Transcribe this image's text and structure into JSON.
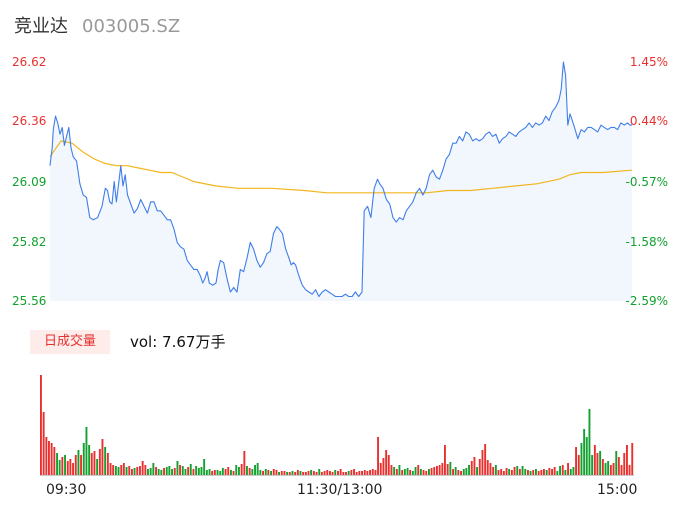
{
  "header": {
    "name": "竞业达",
    "code": "003005.SZ"
  },
  "colors": {
    "up": "#e8312f",
    "down": "#12a12f",
    "neutral": "#888888",
    "price": "#3f7ee8",
    "avg": "#f3b51d",
    "area": "#f2f6fd"
  },
  "volume": {
    "tab_label": "日成交量",
    "readout": "vol: 7.67万手"
  },
  "chart_data": {
    "type": "line",
    "x_labels": [
      "09:30",
      "11:30/13:00",
      "15:00"
    ],
    "y_left_ticks": [
      "26.62",
      "26.36",
      "26.09",
      "25.82",
      "25.56"
    ],
    "y_right_ticks": [
      "1.45%",
      "0.44%",
      "-0.57%",
      "-1.58%",
      "-2.59%"
    ],
    "ylim": [
      25.56,
      26.62
    ],
    "prev_close": 26.24,
    "price_anchors": [
      [
        0,
        26.16
      ],
      [
        2,
        26.24
      ],
      [
        3,
        26.32
      ],
      [
        5,
        26.38
      ],
      [
        7,
        26.35
      ],
      [
        9,
        26.3
      ],
      [
        11,
        26.33
      ],
      [
        13,
        26.25
      ],
      [
        15,
        26.29
      ],
      [
        17,
        26.33
      ],
      [
        19,
        26.24
      ],
      [
        21,
        26.2
      ],
      [
        24,
        26.18
      ],
      [
        27,
        26.08
      ],
      [
        30,
        26.03
      ],
      [
        33,
        26.02
      ],
      [
        36,
        25.93
      ],
      [
        39,
        25.92
      ],
      [
        43,
        25.93
      ],
      [
        47,
        25.98
      ],
      [
        50,
        26.06
      ],
      [
        52,
        26.05
      ],
      [
        54,
        26.0
      ],
      [
        56,
        25.99
      ],
      [
        58,
        26.09
      ],
      [
        60,
        26.0
      ],
      [
        62,
        26.08
      ],
      [
        64,
        26.16
      ],
      [
        66,
        26.07
      ],
      [
        68,
        26.12
      ],
      [
        70,
        26.03
      ],
      [
        73,
        25.99
      ],
      [
        76,
        25.95
      ],
      [
        79,
        25.97
      ],
      [
        82,
        26.01
      ],
      [
        85,
        25.98
      ],
      [
        88,
        25.95
      ],
      [
        91,
        26.0
      ],
      [
        94,
        26.0
      ],
      [
        97,
        25.96
      ],
      [
        100,
        25.96
      ],
      [
        103,
        25.94
      ],
      [
        106,
        25.92
      ],
      [
        109,
        25.92
      ],
      [
        112,
        25.88
      ],
      [
        115,
        25.82
      ],
      [
        118,
        25.8
      ],
      [
        121,
        25.79
      ],
      [
        124,
        25.74
      ],
      [
        127,
        25.72
      ],
      [
        130,
        25.7
      ],
      [
        133,
        25.7
      ],
      [
        136,
        25.67
      ],
      [
        138,
        25.64
      ],
      [
        140,
        25.66
      ],
      [
        142,
        25.69
      ],
      [
        144,
        25.64
      ],
      [
        147,
        25.63
      ],
      [
        150,
        25.64
      ],
      [
        152,
        25.7
      ],
      [
        154,
        25.74
      ],
      [
        157,
        25.73
      ],
      [
        160,
        25.66
      ],
      [
        163,
        25.6
      ],
      [
        166,
        25.62
      ],
      [
        169,
        25.6
      ],
      [
        172,
        25.7
      ],
      [
        175,
        25.69
      ],
      [
        178,
        25.75
      ],
      [
        181,
        25.82
      ],
      [
        184,
        25.79
      ],
      [
        187,
        25.74
      ],
      [
        190,
        25.71
      ],
      [
        193,
        25.73
      ],
      [
        196,
        25.77
      ],
      [
        199,
        25.78
      ],
      [
        202,
        25.86
      ],
      [
        205,
        25.89
      ],
      [
        207,
        25.88
      ],
      [
        210,
        25.86
      ],
      [
        213,
        25.79
      ],
      [
        216,
        25.75
      ],
      [
        218,
        25.72
      ],
      [
        220,
        25.73
      ],
      [
        222,
        25.72
      ],
      [
        225,
        25.67
      ],
      [
        228,
        25.63
      ],
      [
        231,
        25.61
      ],
      [
        234,
        25.6
      ],
      [
        237,
        25.59
      ],
      [
        240,
        25.61
      ],
      [
        243,
        25.58
      ],
      [
        246,
        25.6
      ],
      [
        249,
        25.61
      ],
      [
        252,
        25.6
      ],
      [
        255,
        25.59
      ],
      [
        258,
        25.58
      ],
      [
        261,
        25.58
      ],
      [
        264,
        25.58
      ],
      [
        267,
        25.59
      ],
      [
        270,
        25.58
      ],
      [
        273,
        25.58
      ],
      [
        276,
        25.6
      ],
      [
        279,
        25.58
      ],
      [
        282,
        25.6
      ],
      [
        284,
        25.96
      ],
      [
        287,
        25.98
      ],
      [
        290,
        25.93
      ],
      [
        293,
        26.06
      ],
      [
        296,
        26.1
      ],
      [
        298,
        26.08
      ],
      [
        301,
        26.06
      ],
      [
        304,
        26.01
      ],
      [
        307,
        25.99
      ],
      [
        310,
        25.93
      ],
      [
        313,
        25.91
      ],
      [
        316,
        25.93
      ],
      [
        319,
        25.92
      ],
      [
        322,
        25.96
      ],
      [
        325,
        25.98
      ],
      [
        328,
        26.0
      ],
      [
        331,
        26.04
      ],
      [
        334,
        26.06
      ],
      [
        337,
        26.03
      ],
      [
        340,
        26.06
      ],
      [
        343,
        26.12
      ],
      [
        346,
        26.14
      ],
      [
        349,
        26.11
      ],
      [
        352,
        26.1
      ],
      [
        355,
        26.14
      ],
      [
        358,
        26.19
      ],
      [
        361,
        26.21
      ],
      [
        364,
        26.26
      ],
      [
        367,
        26.26
      ],
      [
        370,
        26.29
      ],
      [
        373,
        26.27
      ],
      [
        376,
        26.31
      ],
      [
        379,
        26.3
      ],
      [
        382,
        26.27
      ],
      [
        385,
        26.28
      ],
      [
        388,
        26.27
      ],
      [
        391,
        26.28
      ],
      [
        394,
        26.3
      ],
      [
        397,
        26.31
      ],
      [
        400,
        26.29
      ],
      [
        403,
        26.3
      ],
      [
        406,
        26.26
      ],
      [
        409,
        26.28
      ],
      [
        412,
        26.29
      ],
      [
        415,
        26.31
      ],
      [
        418,
        26.3
      ],
      [
        421,
        26.29
      ],
      [
        424,
        26.31
      ],
      [
        427,
        26.32
      ],
      [
        430,
        26.33
      ],
      [
        433,
        26.35
      ],
      [
        436,
        26.33
      ],
      [
        439,
        26.35
      ],
      [
        442,
        26.34
      ],
      [
        445,
        26.35
      ],
      [
        448,
        26.38
      ],
      [
        451,
        26.36
      ],
      [
        454,
        26.4
      ],
      [
        457,
        26.42
      ],
      [
        460,
        26.45
      ],
      [
        462,
        26.5
      ],
      [
        464,
        26.62
      ],
      [
        466,
        26.56
      ],
      [
        468,
        26.34
      ],
      [
        470,
        26.39
      ],
      [
        472,
        26.36
      ],
      [
        474,
        26.33
      ],
      [
        477,
        26.28
      ],
      [
        480,
        26.32
      ],
      [
        483,
        26.31
      ],
      [
        486,
        26.33
      ],
      [
        489,
        26.33
      ],
      [
        492,
        26.32
      ],
      [
        495,
        26.31
      ],
      [
        498,
        26.34
      ],
      [
        501,
        26.33
      ],
      [
        504,
        26.32
      ],
      [
        507,
        26.33
      ],
      [
        510,
        26.33
      ],
      [
        513,
        26.32
      ],
      [
        516,
        26.35
      ],
      [
        519,
        26.34
      ],
      [
        522,
        26.35
      ],
      [
        524,
        26.34
      ],
      [
        526,
        26.34
      ]
    ],
    "avg_anchors": [
      [
        0,
        26.2
      ],
      [
        10,
        26.27
      ],
      [
        20,
        26.26
      ],
      [
        30,
        26.22
      ],
      [
        40,
        26.19
      ],
      [
        50,
        26.17
      ],
      [
        60,
        26.16
      ],
      [
        70,
        26.16
      ],
      [
        80,
        26.15
      ],
      [
        90,
        26.14
      ],
      [
        100,
        26.13
      ],
      [
        110,
        26.13
      ],
      [
        120,
        26.11
      ],
      [
        130,
        26.09
      ],
      [
        150,
        26.07
      ],
      [
        170,
        26.06
      ],
      [
        200,
        26.06
      ],
      [
        230,
        26.05
      ],
      [
        250,
        26.04
      ],
      [
        270,
        26.04
      ],
      [
        285,
        26.04
      ],
      [
        300,
        26.04
      ],
      [
        320,
        26.04
      ],
      [
        340,
        26.04
      ],
      [
        360,
        26.05
      ],
      [
        380,
        26.05
      ],
      [
        400,
        26.06
      ],
      [
        420,
        26.07
      ],
      [
        440,
        26.08
      ],
      [
        460,
        26.1
      ],
      [
        470,
        26.12
      ],
      [
        480,
        26.13
      ],
      [
        500,
        26.13
      ],
      [
        526,
        26.14
      ]
    ],
    "volume_bars": [
      [
        100,
        1
      ],
      [
        63,
        1
      ],
      [
        38,
        1
      ],
      [
        34,
        1
      ],
      [
        32,
        1
      ],
      [
        28,
        1
      ],
      [
        22,
        2
      ],
      [
        15,
        2
      ],
      [
        18,
        1
      ],
      [
        20,
        2
      ],
      [
        14,
        1
      ],
      [
        16,
        1
      ],
      [
        12,
        1
      ],
      [
        20,
        1
      ],
      [
        25,
        2
      ],
      [
        20,
        1
      ],
      [
        32,
        2
      ],
      [
        48,
        2
      ],
      [
        30,
        2
      ],
      [
        22,
        1
      ],
      [
        24,
        1
      ],
      [
        16,
        2
      ],
      [
        26,
        1
      ],
      [
        36,
        1
      ],
      [
        28,
        2
      ],
      [
        22,
        1
      ],
      [
        12,
        1
      ],
      [
        10,
        1
      ],
      [
        9,
        2
      ],
      [
        8,
        2
      ],
      [
        10,
        1
      ],
      [
        12,
        1
      ],
      [
        8,
        2
      ],
      [
        9,
        1
      ],
      [
        6,
        1
      ],
      [
        7,
        2
      ],
      [
        8,
        1
      ],
      [
        9,
        1
      ],
      [
        14,
        1
      ],
      [
        10,
        1
      ],
      [
        6,
        2
      ],
      [
        7,
        2
      ],
      [
        12,
        2
      ],
      [
        8,
        1
      ],
      [
        6,
        2
      ],
      [
        5,
        2
      ],
      [
        7,
        1
      ],
      [
        8,
        2
      ],
      [
        9,
        2
      ],
      [
        6,
        2
      ],
      [
        7,
        1
      ],
      [
        14,
        2
      ],
      [
        10,
        1
      ],
      [
        9,
        2
      ],
      [
        6,
        2
      ],
      [
        8,
        1
      ],
      [
        11,
        2
      ],
      [
        6,
        1
      ],
      [
        9,
        2
      ],
      [
        7,
        2
      ],
      [
        8,
        2
      ],
      [
        16,
        2
      ],
      [
        5,
        2
      ],
      [
        6,
        2
      ],
      [
        4,
        1
      ],
      [
        5,
        1
      ],
      [
        5,
        2
      ],
      [
        4,
        2
      ],
      [
        7,
        2
      ],
      [
        6,
        1
      ],
      [
        8,
        1
      ],
      [
        5,
        2
      ],
      [
        4,
        1
      ],
      [
        10,
        2
      ],
      [
        8,
        2
      ],
      [
        11,
        1
      ],
      [
        24,
        1
      ],
      [
        9,
        2
      ],
      [
        7,
        1
      ],
      [
        6,
        2
      ],
      [
        10,
        2
      ],
      [
        12,
        2
      ],
      [
        5,
        2
      ],
      [
        4,
        1
      ],
      [
        6,
        2
      ],
      [
        5,
        1
      ],
      [
        4,
        2
      ],
      [
        6,
        1
      ],
      [
        5,
        1
      ],
      [
        3,
        2
      ],
      [
        4,
        1
      ],
      [
        4,
        1
      ],
      [
        3,
        2
      ],
      [
        3,
        1
      ],
      [
        4,
        2
      ],
      [
        3,
        1
      ],
      [
        5,
        1
      ],
      [
        4,
        2
      ],
      [
        3,
        1
      ],
      [
        3,
        1
      ],
      [
        4,
        1
      ],
      [
        5,
        2
      ],
      [
        4,
        1
      ],
      [
        3,
        1
      ],
      [
        6,
        2
      ],
      [
        3,
        1
      ],
      [
        4,
        1
      ],
      [
        5,
        1
      ],
      [
        4,
        1
      ],
      [
        3,
        1
      ],
      [
        5,
        2
      ],
      [
        4,
        1
      ],
      [
        6,
        1
      ],
      [
        3,
        1
      ],
      [
        3,
        1
      ],
      [
        4,
        2
      ],
      [
        5,
        1
      ],
      [
        6,
        1
      ],
      [
        3,
        1
      ],
      [
        4,
        1
      ],
      [
        4,
        1
      ],
      [
        5,
        1
      ],
      [
        4,
        1
      ],
      [
        5,
        1
      ],
      [
        6,
        1
      ],
      [
        5,
        1
      ],
      [
        38,
        1
      ],
      [
        12,
        1
      ],
      [
        17,
        1
      ],
      [
        25,
        1
      ],
      [
        20,
        1
      ],
      [
        10,
        1
      ],
      [
        8,
        2
      ],
      [
        6,
        1
      ],
      [
        10,
        2
      ],
      [
        5,
        1
      ],
      [
        6,
        2
      ],
      [
        7,
        2
      ],
      [
        5,
        1
      ],
      [
        4,
        2
      ],
      [
        8,
        2
      ],
      [
        10,
        1
      ],
      [
        6,
        2
      ],
      [
        5,
        1
      ],
      [
        4,
        1
      ],
      [
        6,
        2
      ],
      [
        7,
        1
      ],
      [
        8,
        1
      ],
      [
        9,
        1
      ],
      [
        10,
        1
      ],
      [
        12,
        1
      ],
      [
        30,
        1
      ],
      [
        11,
        1
      ],
      [
        13,
        2
      ],
      [
        6,
        1
      ],
      [
        8,
        2
      ],
      [
        5,
        1
      ],
      [
        4,
        1
      ],
      [
        6,
        2
      ],
      [
        7,
        2
      ],
      [
        10,
        2
      ],
      [
        14,
        1
      ],
      [
        18,
        1
      ],
      [
        8,
        2
      ],
      [
        16,
        1
      ],
      [
        25,
        1
      ],
      [
        31,
        1
      ],
      [
        15,
        1
      ],
      [
        12,
        1
      ],
      [
        8,
        1
      ],
      [
        10,
        2
      ],
      [
        5,
        1
      ],
      [
        6,
        1
      ],
      [
        4,
        1
      ],
      [
        7,
        1
      ],
      [
        6,
        2
      ],
      [
        5,
        1
      ],
      [
        8,
        1
      ],
      [
        9,
        2
      ],
      [
        6,
        1
      ],
      [
        9,
        2
      ],
      [
        6,
        2
      ],
      [
        5,
        1
      ],
      [
        4,
        2
      ],
      [
        5,
        1
      ],
      [
        6,
        2
      ],
      [
        4,
        1
      ],
      [
        5,
        1
      ],
      [
        6,
        1
      ],
      [
        5,
        2
      ],
      [
        7,
        1
      ],
      [
        6,
        1
      ],
      [
        8,
        1
      ],
      [
        4,
        2
      ],
      [
        9,
        2
      ],
      [
        10,
        1
      ],
      [
        5,
        2
      ],
      [
        12,
        1
      ],
      [
        6,
        2
      ],
      [
        8,
        2
      ],
      [
        28,
        1
      ],
      [
        20,
        1
      ],
      [
        32,
        2
      ],
      [
        46,
        2
      ],
      [
        38,
        2
      ],
      [
        66,
        2
      ],
      [
        20,
        2
      ],
      [
        30,
        1
      ],
      [
        22,
        1
      ],
      [
        24,
        2
      ],
      [
        16,
        1
      ],
      [
        12,
        2
      ],
      [
        14,
        2
      ],
      [
        10,
        1
      ],
      [
        12,
        1
      ],
      [
        24,
        2
      ],
      [
        18,
        1
      ],
      [
        10,
        1
      ],
      [
        22,
        1
      ],
      [
        30,
        1
      ],
      [
        10,
        1
      ],
      [
        32,
        1
      ]
    ]
  }
}
